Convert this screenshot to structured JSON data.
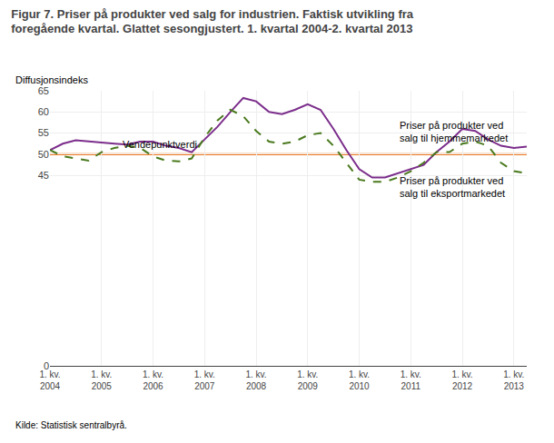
{
  "chart_data": {
    "type": "line",
    "title": "Figur 7. Priser på produkter ved salg for industrien. Faktisk utvikling fra\nforegående kvartal. Glattet sesongjustert. 1. kvartal 2004-2. kvartal 2013",
    "ylabel": "Diffusjonsindeks",
    "categories": [
      "1. kv.\n2004",
      null,
      null,
      null,
      "1. kv.\n2005",
      null,
      null,
      null,
      "1. kv.\n2006",
      null,
      null,
      null,
      "1. kv.\n2007",
      null,
      null,
      null,
      "1. kv.\n2008",
      null,
      null,
      null,
      "1. kv.\n2009",
      null,
      null,
      null,
      "1. kv.\n2010",
      null,
      null,
      null,
      "1. kv.\n2011",
      null,
      null,
      null,
      "1. kv.\n2012",
      null,
      null,
      null,
      "1. kv.\n2013",
      null
    ],
    "series": [
      {
        "color": "#7b2d8b",
        "line_style": "solid",
        "values": [
          51.0,
          52.5,
          53.3,
          53.0,
          52.8,
          52.5,
          52.3,
          53.0,
          53.0,
          52.0,
          51.5,
          50.5,
          53.5,
          56.5,
          60.0,
          63.3,
          62.5,
          60.0,
          59.5,
          60.5,
          61.8,
          60.5,
          56.0,
          51.0,
          46.5,
          44.5,
          44.5,
          45.5,
          46.5,
          47.5,
          50.5,
          53.0,
          56.0,
          55.5,
          53.5,
          52.0,
          51.5,
          51.8
        ]
      },
      {
        "color": "#4a7a1e",
        "line_style": "dash",
        "values": [
          51.0,
          49.5,
          49.0,
          48.5,
          50.5,
          51.5,
          52.0,
          51.5,
          49.5,
          48.5,
          48.3,
          49.0,
          54.0,
          58.0,
          60.5,
          59.0,
          55.5,
          53.0,
          52.5,
          53.0,
          54.5,
          55.0,
          52.0,
          48.0,
          44.0,
          43.5,
          43.5,
          44.5,
          46.0,
          48.0,
          50.5,
          50.5,
          52.5,
          53.0,
          52.0,
          48.0,
          46.0,
          45.5
        ]
      }
    ],
    "hline": {
      "y": 50,
      "color": "#f07820"
    },
    "ylim": [
      0,
      65
    ],
    "yticks": [
      0,
      45,
      50,
      55,
      60,
      65
    ],
    "grid": true,
    "annotations": [
      {
        "text": "Vendepunktverdi",
        "x": 5.5,
        "y": 50.6
      },
      {
        "text": "Priser på produkter ved\nsalg til hjemmemarkedet",
        "x": 27.0,
        "y": 58.5
      },
      {
        "text": "Priser på produkter ved\nsalg til eksportmarkedet",
        "x": 27.0,
        "y": 45.5
      },
      {
        "text": "Kilde: Statistisk sentralbyrå."
      }
    ]
  }
}
